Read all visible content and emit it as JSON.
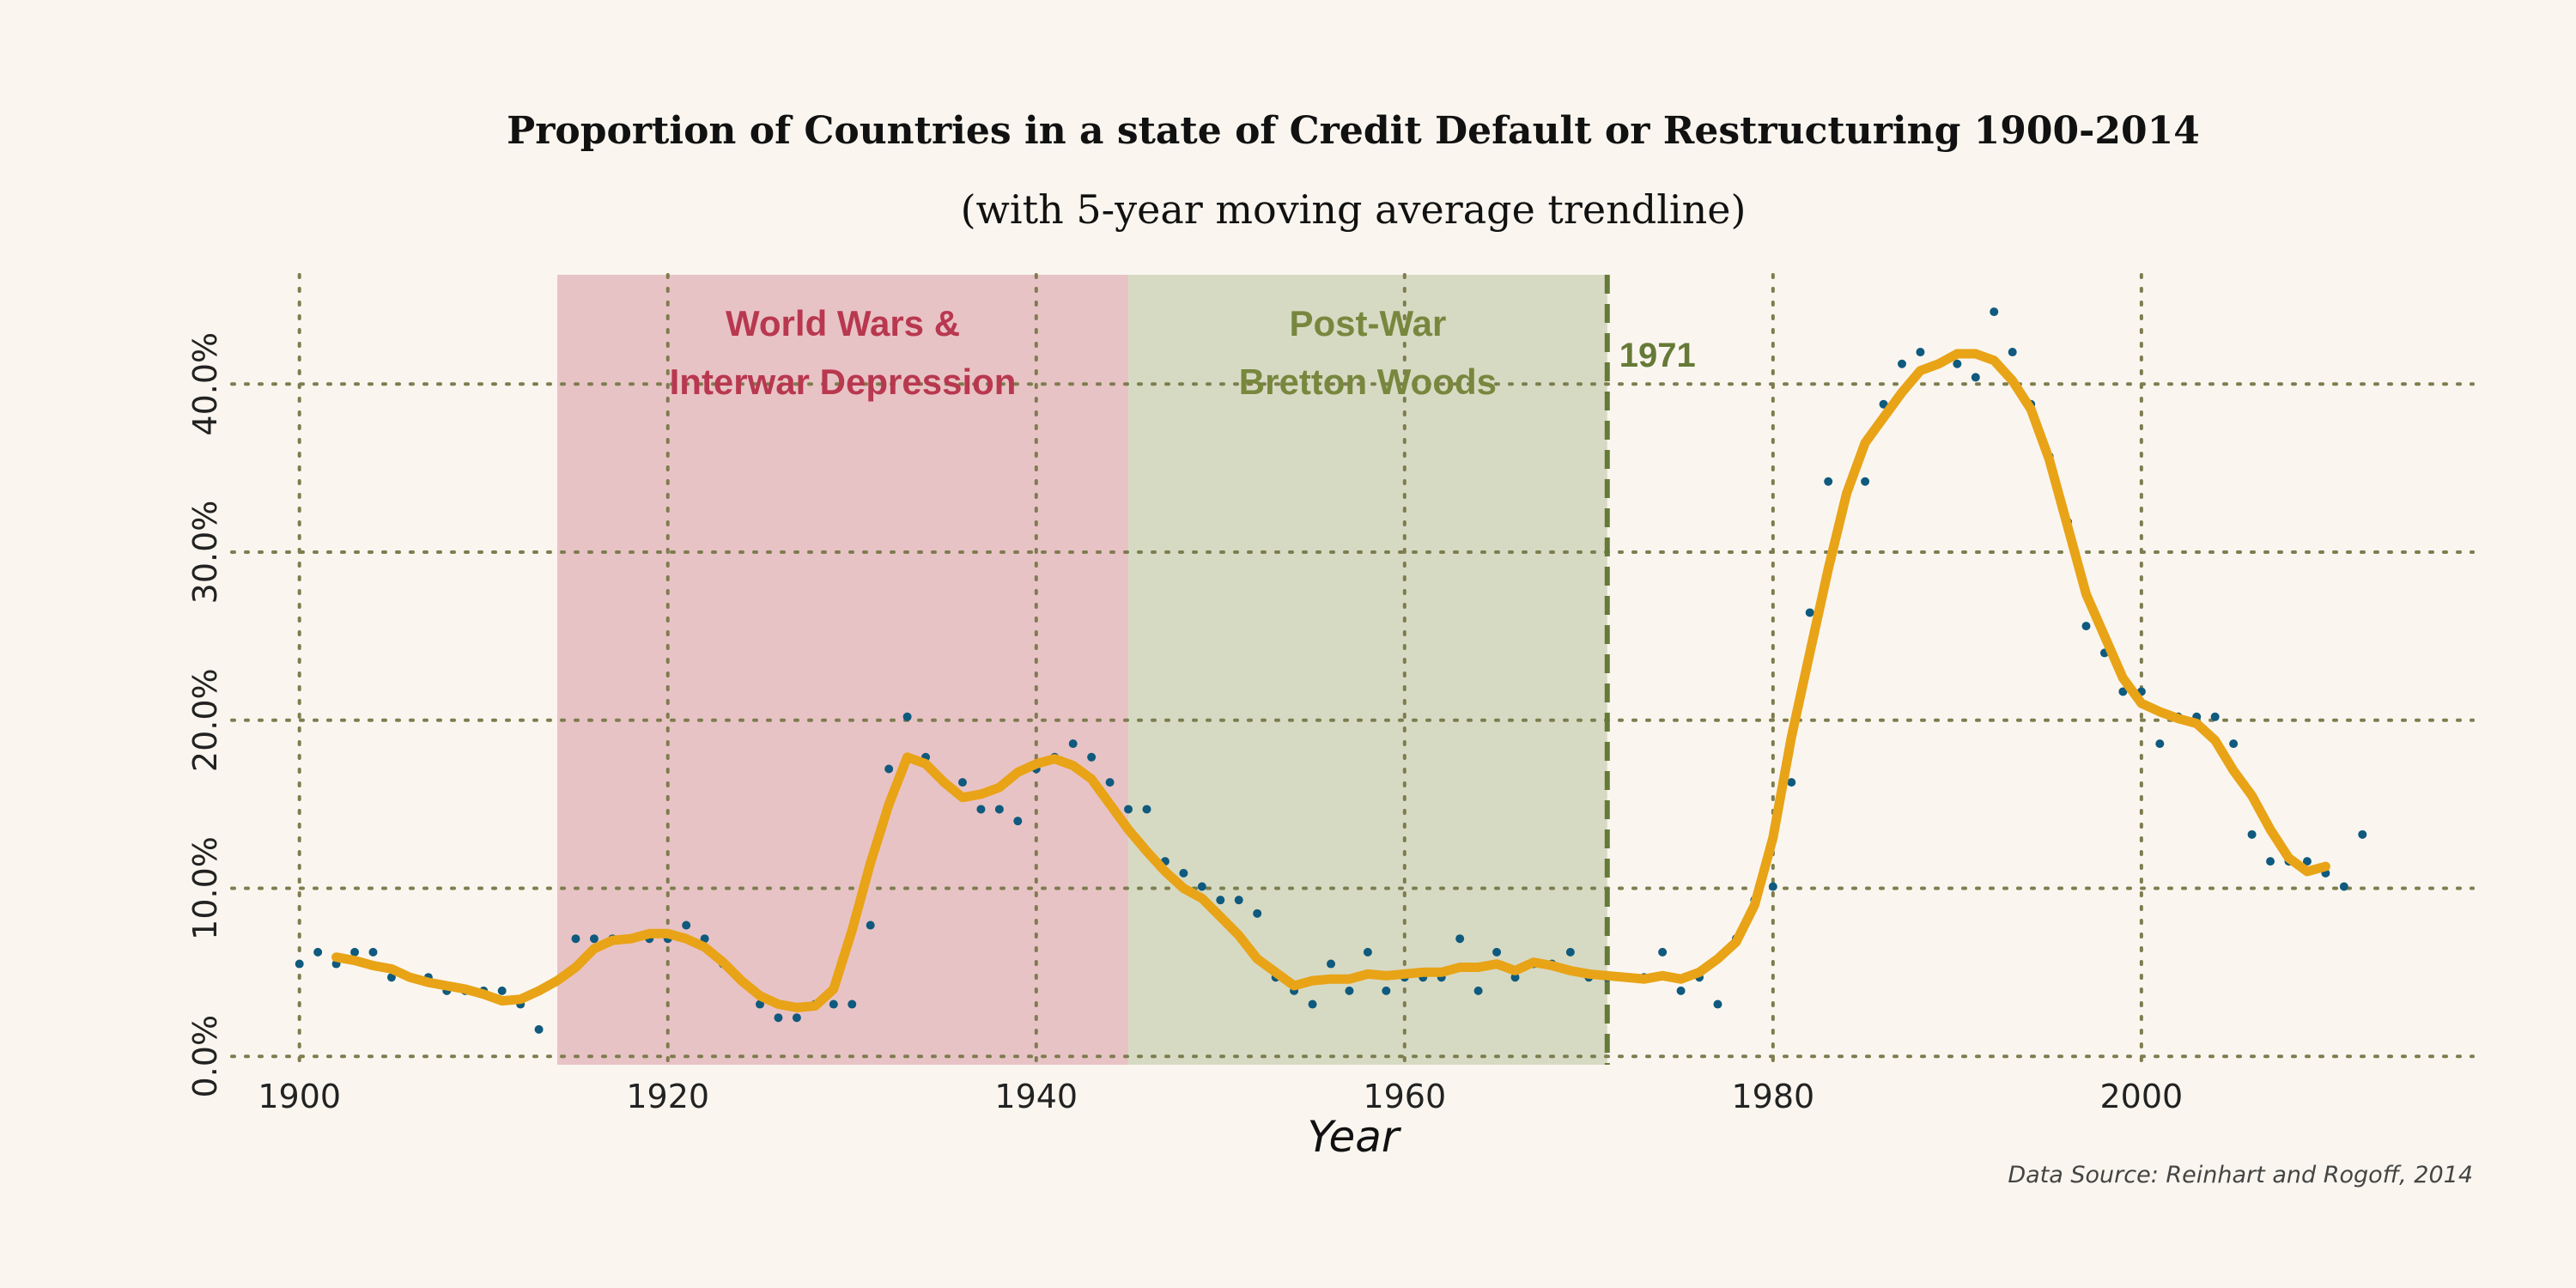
{
  "chart_data": {
    "type": "line",
    "title": "Proportion of Countries in a state of Credit Default or Restructuring 1900-2014",
    "subtitle": "(with 5-year moving average trendline)",
    "xlabel": "Year",
    "ylabel": "",
    "source": "Data Source: Reinhart and Rogoff, 2014",
    "xlim": [
      1894,
      2018
    ],
    "ylim": [
      -0.5,
      46.5
    ],
    "x_ticks": [
      1900,
      1920,
      1940,
      1960,
      1980,
      2000
    ],
    "x_tick_labels": [
      "1900",
      "1920",
      "1940",
      "1960",
      "1980",
      "2000"
    ],
    "y_ticks": [
      0,
      10,
      20,
      30,
      40
    ],
    "y_tick_labels": [
      "0.0%",
      "10.0%",
      "20.0%",
      "30.0%",
      "40.0%"
    ],
    "grid": true,
    "colors": {
      "background": "#faf6ef",
      "grid": "#7d7d4f",
      "points": "#0f5a7e",
      "trend": "#e8a317",
      "ww_band": "#e8c3c5",
      "ww_text": "#b8384f",
      "bw_band": "#d7dac3",
      "bw_text": "#78873e",
      "marker_line": "#667a37"
    },
    "bands": [
      {
        "label_line1": "World Wars &",
        "label_line2": "Interwar Depression",
        "start": 1914,
        "end": 1945
      },
      {
        "label_line1": "Post-War",
        "label_line2": "Bretton Woods",
        "start": 1945,
        "end": 1971
      }
    ],
    "marker": {
      "x": 1971,
      "label": "1971"
    },
    "series": [
      {
        "kind": "scatter",
        "x": [
          1900,
          1901,
          1902,
          1903,
          1904,
          1905,
          1906,
          1907,
          1908,
          1909,
          1910,
          1911,
          1912,
          1913,
          1915,
          1916,
          1917,
          1918,
          1919,
          1920,
          1921,
          1922,
          1923,
          1925,
          1926,
          1927,
          1928,
          1929,
          1930,
          1931,
          1932,
          1933,
          1934,
          1935,
          1936,
          1937,
          1938,
          1939,
          1940,
          1941,
          1942,
          1943,
          1944,
          1945,
          1946,
          1947,
          1948,
          1949,
          1950,
          1951,
          1952,
          1953,
          1954,
          1955,
          1956,
          1957,
          1958,
          1959,
          1960,
          1961,
          1962,
          1963,
          1964,
          1965,
          1966,
          1967,
          1968,
          1969,
          1970,
          1971,
          1972,
          1973,
          1974,
          1975,
          1976,
          1977,
          1978,
          1979,
          1980,
          1981,
          1982,
          1983,
          1984,
          1985,
          1986,
          1987,
          1988,
          1989,
          1990,
          1991,
          1992,
          1993,
          1994,
          1995,
          1996,
          1997,
          1998,
          1999,
          2000,
          2001,
          2002,
          2003,
          2004,
          2005,
          2006,
          2007,
          2008,
          2009,
          2010,
          2011,
          2012
        ],
        "values": [
          5.5,
          6.2,
          5.5,
          6.2,
          6.2,
          4.7,
          4.7,
          4.7,
          3.9,
          3.9,
          3.9,
          3.9,
          3.1,
          1.6,
          7.0,
          7.0,
          7.0,
          7.0,
          7.0,
          7.0,
          7.8,
          7.0,
          5.5,
          3.1,
          2.3,
          2.3,
          3.1,
          3.1,
          3.1,
          7.8,
          17.1,
          20.2,
          17.8,
          16.3,
          16.3,
          14.7,
          14.7,
          14.0,
          17.1,
          17.8,
          18.6,
          17.8,
          16.3,
          14.7,
          14.7,
          11.6,
          10.9,
          10.1,
          9.3,
          9.3,
          8.5,
          4.7,
          3.9,
          3.1,
          5.5,
          3.9,
          6.2,
          3.9,
          4.7,
          4.7,
          4.7,
          7.0,
          3.9,
          6.2,
          4.7,
          5.5,
          5.5,
          6.2,
          4.7,
          4.7,
          4.7,
          4.7,
          6.2,
          3.9,
          4.7,
          3.1,
          7.0,
          9.3,
          10.1,
          16.3,
          26.4,
          34.2,
          33.4,
          34.2,
          38.8,
          41.2,
          41.9,
          41.2,
          41.2,
          40.4,
          44.3,
          41.9,
          38.8,
          35.7,
          31.8,
          25.6,
          24.0,
          21.7,
          21.7,
          18.6,
          20.2,
          20.2,
          20.2,
          18.6,
          13.2,
          11.6,
          11.6,
          11.6,
          10.9,
          10.1,
          13.2
        ]
      },
      {
        "kind": "line",
        "x": [
          1902,
          1903,
          1904,
          1905,
          1906,
          1907,
          1908,
          1909,
          1910,
          1911,
          1912,
          1913,
          1914,
          1915,
          1916,
          1917,
          1918,
          1919,
          1920,
          1921,
          1922,
          1923,
          1924,
          1925,
          1926,
          1927,
          1928,
          1929,
          1930,
          1931,
          1932,
          1933,
          1934,
          1935,
          1936,
          1937,
          1938,
          1939,
          1940,
          1941,
          1942,
          1943,
          1944,
          1945,
          1946,
          1947,
          1948,
          1949,
          1950,
          1951,
          1952,
          1953,
          1954,
          1955,
          1956,
          1957,
          1958,
          1959,
          1960,
          1961,
          1962,
          1963,
          1964,
          1965,
          1966,
          1967,
          1968,
          1969,
          1970,
          1971,
          1972,
          1973,
          1974,
          1975,
          1976,
          1977,
          1978,
          1979,
          1980,
          1981,
          1982,
          1983,
          1984,
          1985,
          1986,
          1987,
          1988,
          1989,
          1990,
          1991,
          1992,
          1993,
          1994,
          1995,
          1996,
          1997,
          1998,
          1999,
          2000,
          2001,
          2002,
          2003,
          2004,
          2005,
          2006,
          2007,
          2008,
          2009,
          2010
        ],
        "values": [
          5.9,
          5.7,
          5.4,
          5.2,
          4.7,
          4.4,
          4.2,
          4.0,
          3.7,
          3.3,
          3.4,
          3.9,
          4.5,
          5.3,
          6.4,
          6.9,
          7.0,
          7.3,
          7.3,
          7.0,
          6.5,
          5.6,
          4.5,
          3.6,
          3.1,
          2.9,
          3.0,
          4.0,
          7.5,
          11.5,
          15.0,
          17.8,
          17.4,
          16.3,
          15.4,
          15.6,
          16.0,
          16.9,
          17.4,
          17.7,
          17.3,
          16.5,
          15.0,
          13.5,
          12.2,
          11.0,
          10.0,
          9.4,
          8.3,
          7.2,
          5.8,
          5.0,
          4.2,
          4.5,
          4.6,
          4.6,
          4.9,
          4.8,
          4.9,
          5.0,
          5.0,
          5.3,
          5.3,
          5.5,
          5.1,
          5.6,
          5.4,
          5.1,
          4.9,
          4.8,
          4.7,
          4.6,
          4.8,
          4.6,
          5.0,
          5.8,
          6.8,
          9.0,
          13.0,
          19.0,
          24.0,
          29.0,
          33.5,
          36.5,
          38.0,
          39.5,
          40.8,
          41.2,
          41.8,
          41.8,
          41.4,
          40.2,
          38.5,
          35.5,
          31.5,
          27.5,
          25.0,
          22.5,
          21.0,
          20.5,
          20.1,
          19.8,
          18.8,
          17.0,
          15.5,
          13.5,
          11.8,
          11.0,
          11.3
        ]
      }
    ]
  }
}
